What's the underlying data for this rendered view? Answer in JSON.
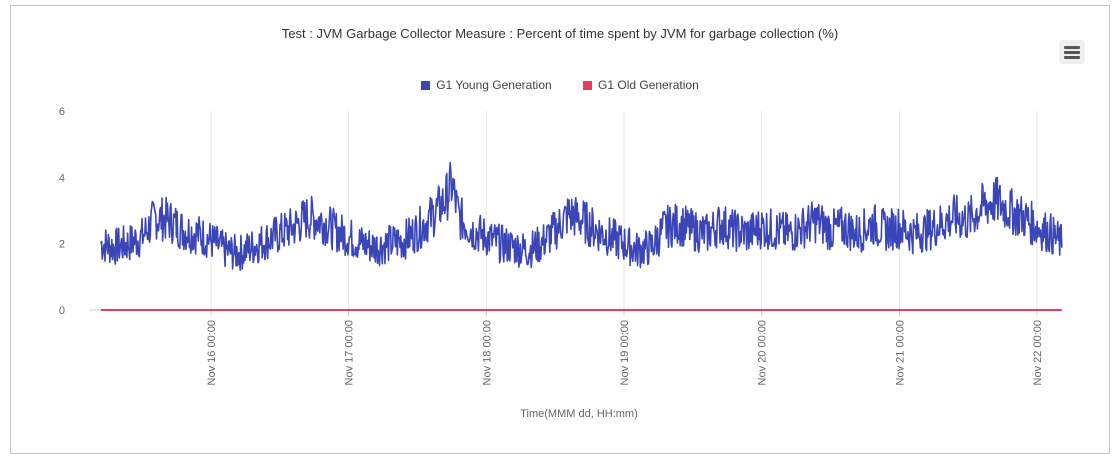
{
  "chart_data": {
    "type": "line",
    "title": "Test : JVM Garbage Collector Measure : Percent of time spent by JVM for garbage collection (%)",
    "xlabel": "Time(MMM dd, HH:mm)",
    "ylabel": "",
    "ylim": [
      0,
      6
    ],
    "yticks": [
      "0",
      "2",
      "4",
      "6"
    ],
    "x_tick_labels": [
      "Nov 16 00:00",
      "Nov 17 00:00",
      "Nov 18 00:00",
      "Nov 19 00:00",
      "Nov 20 00:00",
      "Nov 21 00:00",
      "Nov 22 00:00"
    ],
    "x_range_days": [
      15.2,
      22.18
    ],
    "grid": true,
    "legend_position": "top-center",
    "series": [
      {
        "name": "G1 Young Generation",
        "color": "#3a45b8",
        "x_days": [
          15.2,
          15.3,
          15.4,
          15.5,
          15.6,
          15.7,
          15.8,
          15.9,
          16.0,
          16.1,
          16.2,
          16.3,
          16.4,
          16.5,
          16.6,
          16.7,
          16.8,
          16.9,
          17.0,
          17.1,
          17.2,
          17.3,
          17.4,
          17.5,
          17.6,
          17.7,
          17.75,
          17.8,
          17.9,
          18.0,
          18.1,
          18.2,
          18.3,
          18.4,
          18.5,
          18.6,
          18.7,
          18.8,
          18.9,
          19.0,
          19.1,
          19.2,
          19.3,
          19.4,
          19.5,
          19.6,
          19.7,
          19.8,
          19.9,
          20.0,
          20.1,
          20.2,
          20.3,
          20.4,
          20.5,
          20.6,
          20.7,
          20.8,
          20.9,
          21.0,
          21.1,
          21.2,
          21.3,
          21.4,
          21.5,
          21.6,
          21.7,
          21.8,
          21.9,
          22.0,
          22.1,
          22.18
        ],
        "values": [
          2.0,
          1.9,
          2.0,
          2.2,
          2.8,
          2.7,
          2.4,
          2.3,
          2.1,
          1.8,
          1.7,
          1.9,
          2.1,
          2.3,
          2.5,
          2.8,
          2.7,
          2.4,
          2.2,
          2.0,
          1.9,
          2.0,
          2.1,
          2.4,
          2.8,
          3.3,
          3.8,
          2.8,
          2.4,
          2.2,
          2.0,
          1.9,
          1.8,
          2.0,
          2.4,
          2.9,
          2.7,
          2.4,
          2.2,
          2.0,
          1.8,
          1.9,
          2.5,
          2.6,
          2.4,
          2.3,
          2.6,
          2.4,
          2.3,
          2.5,
          2.4,
          2.3,
          2.5,
          2.7,
          2.4,
          2.5,
          2.3,
          2.6,
          2.4,
          2.5,
          2.3,
          2.4,
          2.6,
          2.8,
          2.7,
          3.1,
          3.3,
          3.0,
          2.8,
          2.5,
          2.3,
          2.0
        ]
      },
      {
        "name": "G1 Old Generation",
        "color": "#e63e5a",
        "x_days": [
          15.2,
          22.18
        ],
        "values": [
          0,
          0
        ]
      }
    ]
  }
}
